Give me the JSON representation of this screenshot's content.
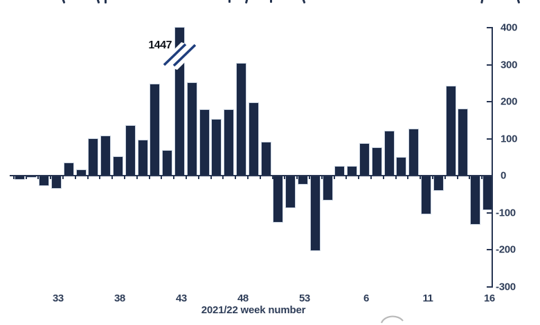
{
  "chart_data": {
    "type": "bar",
    "xlabel": "2021/22 week number",
    "x_tick_labels": [
      "33",
      "38",
      "43",
      "48",
      "53",
      "6",
      "11",
      "16"
    ],
    "x_tick_bar_indices": [
      3,
      8,
      13,
      18,
      23,
      28,
      33,
      38
    ],
    "y_ticks": [
      400,
      300,
      200,
      100,
      0,
      -100,
      -200,
      -300
    ],
    "ylim": [
      -300,
      400
    ],
    "y_axis_side": "right",
    "grid": false,
    "weeks": [
      "30",
      "31",
      "32",
      "33",
      "34",
      "35",
      "36",
      "37",
      "38",
      "39",
      "40",
      "41",
      "42",
      "43",
      "44",
      "45",
      "46",
      "47",
      "48",
      "49",
      "50",
      "51",
      "52",
      "53",
      "2",
      "3",
      "4",
      "5",
      "6",
      "7",
      "8",
      "9",
      "10",
      "11",
      "12",
      "13",
      "14",
      "15",
      "16"
    ],
    "values": [
      -12,
      -6,
      -28,
      -35,
      35,
      17,
      101,
      109,
      52,
      136,
      97,
      248,
      70,
      1447,
      253,
      180,
      153,
      179,
      305,
      199,
      91,
      -127,
      -88,
      -24,
      -204,
      -67,
      26,
      26,
      88,
      76,
      122,
      50,
      128,
      -105,
      -42,
      243,
      181,
      -132,
      -93
    ],
    "annotation": {
      "text": "1447",
      "target_week": "43",
      "note": "bar exceeds axis, shown with axis break"
    },
    "axis_break": {
      "present": true,
      "on_week": "43"
    },
    "colors": {
      "bar_fill": "#1b2946",
      "bar_outline": "#c9d3e0",
      "axis": "#273552",
      "tick_label": "#2e3d58",
      "annotation_text": "#0d1118",
      "break_slash": "#1f3e7d",
      "watermark": "#adadad"
    },
    "title_clipped_at_top": true
  }
}
